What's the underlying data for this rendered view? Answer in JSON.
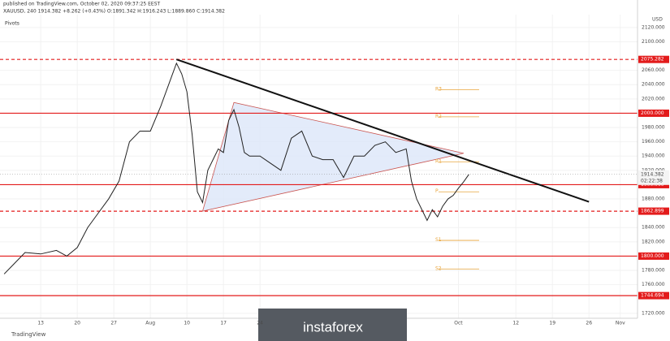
{
  "chart_data": {
    "type": "line",
    "published": "published on TradingView.com, October 02, 2020 09:37:25 EEST",
    "symbol_line": "XAUUSD, 240  1914.382  +8.262 (+0.43%)  O:1891.342  H:1916.243  L:1889.860  C:1914.382",
    "indicator": "Pivots",
    "currency": "USD",
    "brand": "TradingView",
    "watermark": "instaforex",
    "series": [
      {
        "name": "XAUUSD",
        "color": "#222222",
        "x": [
          188,
          190,
          192,
          195,
          198,
          200,
          202,
          204,
          206,
          208,
          210,
          212,
          214,
          216,
          218,
          220,
          221,
          222,
          223,
          224,
          225,
          226,
          227,
          228,
          229,
          230,
          231,
          232,
          233,
          234,
          235,
          237,
          239,
          241,
          243,
          245,
          247,
          249,
          251,
          253,
          255,
          257,
          259,
          261,
          263,
          265,
          266,
          267,
          268,
          269,
          270,
          271,
          272,
          273,
          274,
          275,
          276,
          277
        ],
        "values": [
          1775,
          1790,
          1805,
          1803,
          1808,
          1800,
          1812,
          1840,
          1860,
          1880,
          1905,
          1960,
          1975,
          1975,
          2010,
          2050,
          2070,
          2055,
          2030,
          1970,
          1890,
          1875,
          1920,
          1935,
          1950,
          1945,
          1990,
          2005,
          1980,
          1945,
          1940,
          1940,
          1930,
          1920,
          1965,
          1975,
          1940,
          1935,
          1935,
          1910,
          1940,
          1940,
          1955,
          1960,
          1945,
          1950,
          1905,
          1880,
          1865,
          1850,
          1865,
          1855,
          1870,
          1880,
          1885,
          1895,
          1904,
          1914.382
        ]
      }
    ],
    "xlim": [
      187.2,
      309.3
    ],
    "ylim": [
      1713,
      2138
    ],
    "xticks": [
      {
        "value": 195,
        "label": "13"
      },
      {
        "value": 202,
        "label": "20"
      },
      {
        "value": 209,
        "label": "27"
      },
      {
        "value": 216,
        "label": "Aug"
      },
      {
        "value": 223,
        "label": "10"
      },
      {
        "value": 230,
        "label": "17"
      },
      {
        "value": 237,
        "label": "24"
      },
      {
        "value": 275,
        "label": "Oct"
      },
      {
        "value": 286,
        "label": "12"
      },
      {
        "value": 293,
        "label": "19"
      },
      {
        "value": 300,
        "label": "26"
      },
      {
        "value": 306,
        "label": "Nov"
      }
    ],
    "yticks": [
      {
        "value": 1720,
        "label": "1720.000"
      },
      {
        "value": 1760,
        "label": "1760.000"
      },
      {
        "value": 1780,
        "label": "1780.000"
      },
      {
        "value": 1820,
        "label": "1820.000"
      },
      {
        "value": 1840,
        "label": "1840.000"
      },
      {
        "value": 1880,
        "label": "1880.000"
      },
      {
        "value": 1920,
        "label": "1920.000"
      },
      {
        "value": 1940,
        "label": "1940.000"
      },
      {
        "value": 1960,
        "label": "1960.000"
      },
      {
        "value": 1980,
        "label": "1980.000"
      },
      {
        "value": 2020,
        "label": "2020.000"
      },
      {
        "value": 2040,
        "label": "2040.000"
      },
      {
        "value": 2060,
        "label": "2060.000"
      },
      {
        "value": 2100,
        "label": "2100.000"
      },
      {
        "value": 2120,
        "label": "2120.000"
      }
    ],
    "grid": true,
    "levels": [
      {
        "value": 2075.282,
        "label": "2075.282",
        "style": "dashed",
        "color": "#e31b1b"
      },
      {
        "value": 2000,
        "label": "2000.000",
        "style": "solid",
        "color": "#e31b1b"
      },
      {
        "value": 1900,
        "label": "1900.000",
        "style": "solid",
        "color": "#e31b1b"
      },
      {
        "value": 1862.899,
        "label": "1862.899",
        "style": "dashed",
        "color": "#e31b1b"
      },
      {
        "value": 1800,
        "label": "1800.000",
        "style": "solid",
        "color": "#e31b1b"
      },
      {
        "value": 1744.694,
        "label": "1744.694",
        "style": "solid",
        "color": "#e31b1b"
      }
    ],
    "last": {
      "value": 1914.382,
      "label": "1914.382",
      "countdown": "02:22:38"
    },
    "pivots": [
      {
        "name": "R3",
        "value": 2033
      },
      {
        "name": "R2",
        "value": 1995
      },
      {
        "name": "R1",
        "value": 1932
      },
      {
        "name": "P",
        "value": 1890
      },
      {
        "name": "S1",
        "value": 1822
      },
      {
        "name": "S2",
        "value": 1782
      }
    ],
    "pivot_color": "#e8a43a",
    "trendline": {
      "x": [
        221,
        300
      ],
      "y": [
        2075.282,
        1876
      ],
      "color": "#111111"
    },
    "triangle": {
      "x": [
        226,
        232,
        276
      ],
      "y": [
        1862.899,
        2015,
        1944
      ],
      "color": "#c9534f",
      "fill": "#dce6f9"
    }
  }
}
